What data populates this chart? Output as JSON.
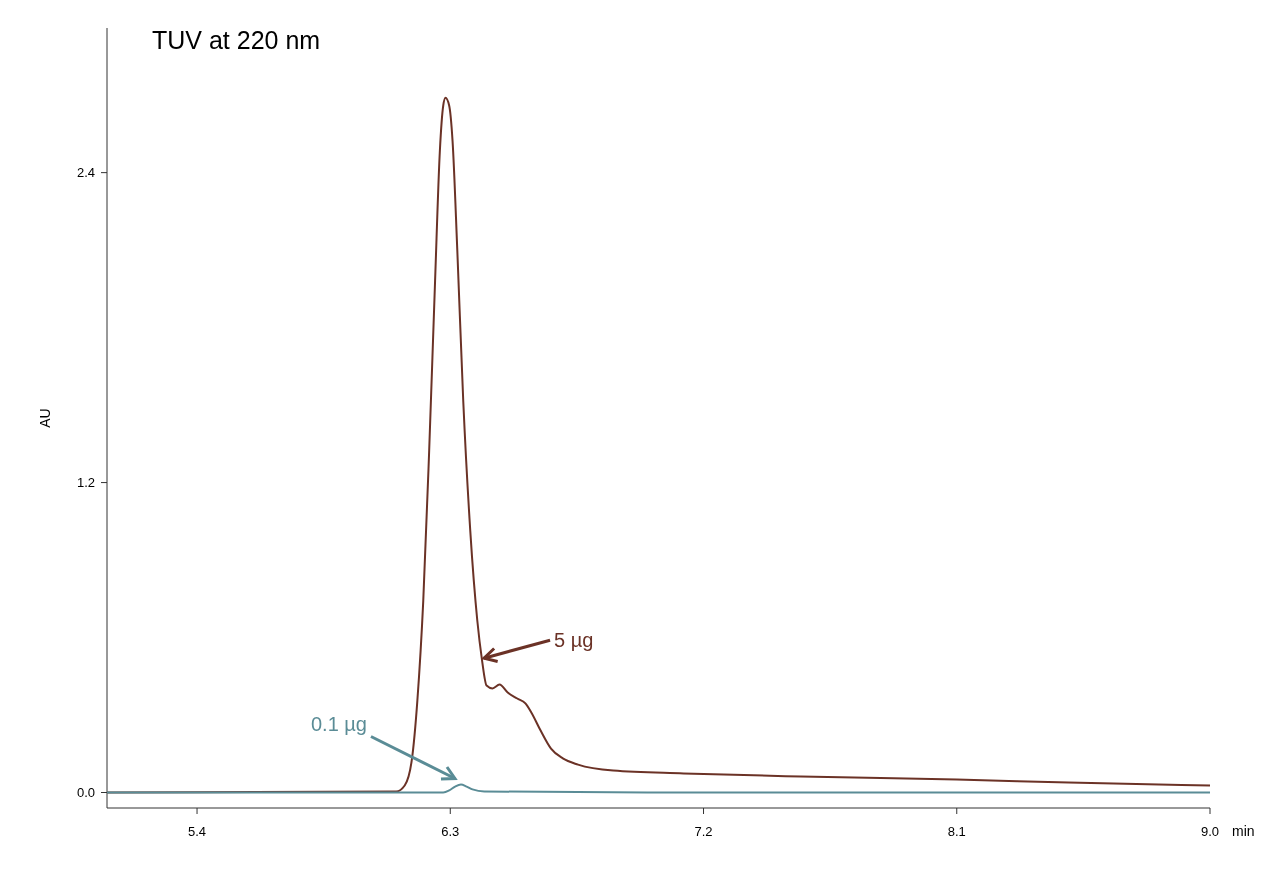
{
  "chart_data": {
    "type": "line",
    "title": "TUV at 220 nm",
    "xlabel": "min",
    "ylabel": "AU",
    "xlim": [
      5.08,
      9.0
    ],
    "xticks": [
      5.4,
      6.3,
      7.2,
      8.1,
      {
        "value": 9.0,
        "label": "9.0"
      }
    ],
    "ylim": [
      -0.06,
      2.96
    ],
    "yticks": [
      {
        "value": 0,
        "label": "0.0"
      },
      1.2,
      2.4
    ],
    "grid": false,
    "marker": "none",
    "line_style": "solid",
    "series": [
      {
        "color": "#6b3226",
        "x": [
          5.08,
          6.108,
          6.138,
          6.163,
          6.183,
          6.204,
          6.225,
          6.246,
          6.263,
          6.275,
          6.283,
          6.296,
          6.308,
          6.325,
          6.346,
          6.371,
          6.396,
          6.413,
          6.429,
          6.45,
          6.475,
          6.504,
          6.538,
          6.567,
          6.588,
          6.621,
          6.658,
          6.7,
          6.754,
          6.879,
          7.129,
          7.546,
          8.1,
          8.497,
          9.0
        ],
        "values": [
          0,
          0.004,
          0.027,
          0.124,
          0.356,
          0.743,
          1.324,
          1.982,
          2.485,
          2.66,
          2.69,
          2.66,
          2.524,
          2.098,
          1.518,
          1.014,
          0.666,
          0.511,
          0.414,
          0.403,
          0.418,
          0.387,
          0.364,
          0.345,
          0.31,
          0.24,
          0.17,
          0.132,
          0.108,
          0.085,
          0.074,
          0.062,
          0.05,
          0.039,
          0.027
        ]
      },
      {
        "color": "#5a8c96",
        "x": [
          5.08,
          6.275,
          6.296,
          6.317,
          6.338,
          6.358,
          6.379,
          6.421,
          7.0,
          9.0
        ],
        "values": [
          0,
          0,
          0.008,
          0.023,
          0.031,
          0.023,
          0.012,
          0.004,
          0,
          0
        ]
      }
    ],
    "annotations": [
      {
        "text": "5 µg",
        "x": 6.42,
        "y": 0.52
      },
      {
        "text": "0.1 µg",
        "x": 6.338,
        "y": 0.031
      }
    ]
  }
}
